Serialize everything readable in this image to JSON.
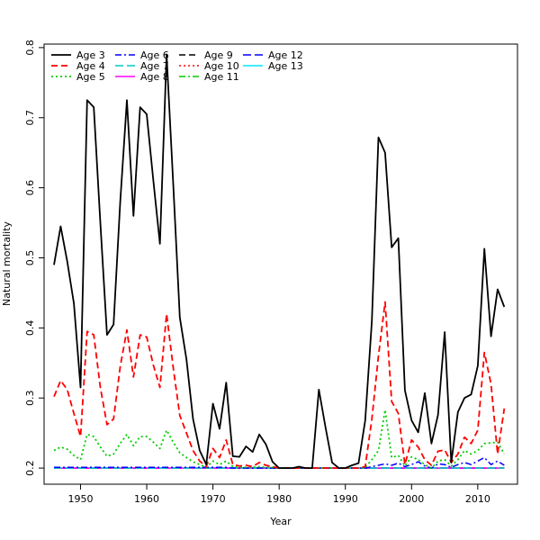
{
  "chart_data": {
    "type": "line",
    "title": "",
    "xlabel": "Year",
    "ylabel": "Natural mortality",
    "xlim": [
      1944.5,
      2016
    ],
    "ylim": [
      0.177,
      0.805
    ],
    "xticks": [
      1950,
      1960,
      1970,
      1980,
      1990,
      2000,
      2010
    ],
    "yticks": [
      0.2,
      0.3,
      0.4,
      0.5,
      0.6,
      0.7,
      0.8
    ],
    "grid": false,
    "legend_position": "top-left",
    "x": [
      1946,
      1947,
      1948,
      1949,
      1950,
      1951,
      1952,
      1953,
      1954,
      1955,
      1956,
      1957,
      1958,
      1959,
      1960,
      1961,
      1962,
      1963,
      1964,
      1965,
      1966,
      1967,
      1968,
      1969,
      1970,
      1971,
      1972,
      1973,
      1974,
      1975,
      1976,
      1977,
      1978,
      1979,
      1980,
      1981,
      1982,
      1983,
      1984,
      1985,
      1986,
      1987,
      1988,
      1989,
      1990,
      1991,
      1992,
      1993,
      1994,
      1995,
      1996,
      1997,
      1998,
      1999,
      2000,
      2001,
      2002,
      2003,
      2004,
      2005,
      2006,
      2007,
      2008,
      2009,
      2010,
      2011,
      2012,
      2013,
      2014
    ],
    "series": [
      {
        "name": "Age 3",
        "color": "#000000",
        "dash": "solid",
        "width": 1.8,
        "values": [
          0.49,
          0.545,
          0.495,
          0.435,
          0.315,
          0.725,
          0.715,
          0.55,
          0.39,
          0.405,
          0.58,
          0.725,
          0.56,
          0.715,
          0.705,
          0.61,
          0.52,
          0.79,
          0.605,
          0.415,
          0.355,
          0.27,
          0.225,
          0.205,
          0.292,
          0.256,
          0.322,
          0.217,
          0.216,
          0.231,
          0.223,
          0.248,
          0.234,
          0.209,
          0.2,
          0.2,
          0.2,
          0.202,
          0.2,
          0.2,
          0.312,
          0.258,
          0.208,
          0.2,
          0.2,
          0.204,
          0.207,
          0.268,
          0.41,
          0.672,
          0.65,
          0.515,
          0.528,
          0.311,
          0.268,
          0.251,
          0.307,
          0.235,
          0.276,
          0.394,
          0.208,
          0.28,
          0.3,
          0.305,
          0.346,
          0.513,
          0.388,
          0.455,
          0.43
        ]
      },
      {
        "name": "Age 4",
        "color": "#ff0000",
        "dash": "7,4",
        "width": 1.8,
        "values": [
          0.302,
          0.325,
          0.312,
          0.278,
          0.245,
          0.395,
          0.39,
          0.315,
          0.262,
          0.27,
          0.345,
          0.397,
          0.33,
          0.39,
          0.387,
          0.347,
          0.315,
          0.42,
          0.343,
          0.275,
          0.25,
          0.225,
          0.21,
          0.202,
          0.228,
          0.215,
          0.24,
          0.205,
          0.203,
          0.204,
          0.202,
          0.208,
          0.204,
          0.202,
          0.2,
          0.2,
          0.2,
          0.2,
          0.2,
          0.2,
          0.2,
          0.2,
          0.2,
          0.2,
          0.2,
          0.2,
          0.2,
          0.202,
          0.27,
          0.36,
          0.437,
          0.295,
          0.278,
          0.205,
          0.24,
          0.23,
          0.212,
          0.204,
          0.224,
          0.226,
          0.208,
          0.22,
          0.244,
          0.235,
          0.254,
          0.365,
          0.32,
          0.22,
          0.285
        ]
      },
      {
        "name": "Age 5",
        "color": "#00cc00",
        "dash": "2,3",
        "width": 1.8,
        "values": [
          0.225,
          0.23,
          0.227,
          0.218,
          0.212,
          0.248,
          0.245,
          0.23,
          0.217,
          0.22,
          0.235,
          0.248,
          0.232,
          0.245,
          0.245,
          0.237,
          0.228,
          0.254,
          0.237,
          0.222,
          0.215,
          0.209,
          0.205,
          0.201,
          0.21,
          0.205,
          0.21,
          0.202,
          0.201,
          0.201,
          0.201,
          0.202,
          0.201,
          0.201,
          0.2,
          0.2,
          0.2,
          0.2,
          0.2,
          0.2,
          0.2,
          0.2,
          0.2,
          0.2,
          0.2,
          0.2,
          0.2,
          0.201,
          0.212,
          0.225,
          0.283,
          0.215,
          0.218,
          0.203,
          0.216,
          0.212,
          0.205,
          0.2,
          0.21,
          0.212,
          0.203,
          0.212,
          0.225,
          0.22,
          0.225,
          0.235,
          0.236,
          0.237,
          0.22
        ]
      },
      {
        "name": "Age 6",
        "color": "#0000ff",
        "dash": "7,3,2,3",
        "width": 1.5,
        "values": [
          0.201,
          0.201,
          0.201,
          0.201,
          0.201,
          0.201,
          0.201,
          0.201,
          0.201,
          0.201,
          0.201,
          0.201,
          0.201,
          0.201,
          0.201,
          0.201,
          0.201,
          0.201,
          0.201,
          0.201,
          0.201,
          0.201,
          0.201,
          0.201,
          0.201,
          0.201,
          0.201,
          0.2,
          0.2,
          0.2,
          0.2,
          0.2,
          0.2,
          0.2,
          0.2,
          0.2,
          0.2,
          0.2,
          0.2,
          0.2,
          0.2,
          0.2,
          0.2,
          0.2,
          0.2,
          0.2,
          0.2,
          0.2,
          0.202,
          0.204,
          0.206,
          0.204,
          0.207,
          0.202,
          0.205,
          0.209,
          0.203,
          0.2,
          0.206,
          0.205,
          0.201,
          0.205,
          0.208,
          0.205,
          0.21,
          0.215,
          0.205,
          0.21,
          0.204
        ]
      },
      {
        "name": "Age 7",
        "color": "#00cccc",
        "dash": "9,4",
        "width": 1.5,
        "values": [
          0.2,
          0.2,
          0.2,
          0.2,
          0.2,
          0.2,
          0.2,
          0.2,
          0.2,
          0.2,
          0.2,
          0.2,
          0.2,
          0.2,
          0.2,
          0.2,
          0.2,
          0.2,
          0.2,
          0.2,
          0.2,
          0.2,
          0.2,
          0.2,
          0.2,
          0.2,
          0.2,
          0.2,
          0.2,
          0.2,
          0.2,
          0.2,
          0.2,
          0.2,
          0.2,
          0.2,
          0.2,
          0.2,
          0.2,
          0.2,
          0.2,
          0.2,
          0.2,
          0.2,
          0.2,
          0.2,
          0.2,
          0.2,
          0.2,
          0.2,
          0.2,
          0.2,
          0.2,
          0.2,
          0.2,
          0.2,
          0.2,
          0.2,
          0.2,
          0.2,
          0.2,
          0.2,
          0.2,
          0.2,
          0.2,
          0.2,
          0.2,
          0.2,
          0.2
        ]
      },
      {
        "name": "Age 8",
        "color": "#ff00ff",
        "dash": "solid",
        "width": 1.5,
        "values": [
          0.2,
          0.2,
          0.2,
          0.2,
          0.2,
          0.2,
          0.2,
          0.2,
          0.2,
          0.2,
          0.2,
          0.2,
          0.2,
          0.2,
          0.2,
          0.2,
          0.2,
          0.2,
          0.2,
          0.2,
          0.2,
          0.2,
          0.2,
          0.2,
          0.2,
          0.2,
          0.2,
          0.2,
          0.2,
          0.2,
          0.2,
          0.2,
          0.2,
          0.2,
          0.2,
          0.2,
          0.2,
          0.2,
          0.2,
          0.2,
          0.2,
          0.2,
          0.2,
          0.2,
          0.2,
          0.2,
          0.2,
          0.2,
          0.2,
          0.2,
          0.2,
          0.2,
          0.2,
          0.2,
          0.2,
          0.2,
          0.2,
          0.2,
          0.2,
          0.2,
          0.2,
          0.2,
          0.2,
          0.2,
          0.2,
          0.2,
          0.2,
          0.2,
          0.2
        ]
      },
      {
        "name": "Age 9",
        "color": "#000000",
        "dash": "7,4",
        "width": 1.5,
        "values": [
          0.2,
          0.2,
          0.2,
          0.2,
          0.2,
          0.2,
          0.2,
          0.2,
          0.2,
          0.2,
          0.2,
          0.2,
          0.2,
          0.2,
          0.2,
          0.2,
          0.2,
          0.2,
          0.2,
          0.2,
          0.2,
          0.2,
          0.2,
          0.2,
          0.2,
          0.2,
          0.2,
          0.2,
          0.2,
          0.2,
          0.2,
          0.2,
          0.2,
          0.2,
          0.2,
          0.2,
          0.2,
          0.2,
          0.2,
          0.2,
          0.2,
          0.2,
          0.2,
          0.2,
          0.2,
          0.2,
          0.2,
          0.2,
          0.2,
          0.2,
          0.2,
          0.2,
          0.2,
          0.2,
          0.2,
          0.2,
          0.2,
          0.2,
          0.2,
          0.2,
          0.2,
          0.2,
          0.2,
          0.2,
          0.2,
          0.2,
          0.2,
          0.2,
          0.2
        ]
      },
      {
        "name": "Age 10",
        "color": "#ff0000",
        "dash": "2,3",
        "width": 1.5,
        "values": [
          0.2,
          0.2,
          0.2,
          0.2,
          0.2,
          0.2,
          0.2,
          0.2,
          0.2,
          0.2,
          0.2,
          0.2,
          0.2,
          0.2,
          0.2,
          0.2,
          0.2,
          0.2,
          0.2,
          0.2,
          0.2,
          0.2,
          0.2,
          0.2,
          0.2,
          0.2,
          0.2,
          0.2,
          0.2,
          0.2,
          0.2,
          0.2,
          0.2,
          0.2,
          0.2,
          0.2,
          0.2,
          0.2,
          0.2,
          0.2,
          0.2,
          0.2,
          0.2,
          0.2,
          0.2,
          0.2,
          0.2,
          0.2,
          0.2,
          0.2,
          0.2,
          0.2,
          0.2,
          0.2,
          0.2,
          0.2,
          0.2,
          0.2,
          0.2,
          0.2,
          0.2,
          0.2,
          0.2,
          0.2,
          0.2,
          0.2,
          0.2,
          0.2,
          0.2
        ]
      },
      {
        "name": "Age 11",
        "color": "#00cc00",
        "dash": "7,3,2,3",
        "width": 1.5,
        "values": [
          0.2,
          0.2,
          0.2,
          0.2,
          0.2,
          0.2,
          0.2,
          0.2,
          0.2,
          0.2,
          0.2,
          0.2,
          0.2,
          0.2,
          0.2,
          0.2,
          0.2,
          0.2,
          0.2,
          0.2,
          0.2,
          0.2,
          0.2,
          0.2,
          0.2,
          0.2,
          0.2,
          0.2,
          0.2,
          0.2,
          0.2,
          0.2,
          0.2,
          0.2,
          0.2,
          0.2,
          0.2,
          0.2,
          0.2,
          0.2,
          0.2,
          0.2,
          0.2,
          0.2,
          0.2,
          0.2,
          0.2,
          0.2,
          0.2,
          0.2,
          0.2,
          0.2,
          0.2,
          0.2,
          0.2,
          0.2,
          0.2,
          0.2,
          0.2,
          0.2,
          0.2,
          0.2,
          0.2,
          0.2,
          0.2,
          0.2,
          0.2,
          0.2,
          0.2
        ]
      },
      {
        "name": "Age 12",
        "color": "#0000ff",
        "dash": "9,4",
        "width": 1.5,
        "values": [
          0.2,
          0.2,
          0.2,
          0.2,
          0.2,
          0.2,
          0.2,
          0.2,
          0.2,
          0.2,
          0.2,
          0.2,
          0.2,
          0.2,
          0.2,
          0.2,
          0.2,
          0.2,
          0.2,
          0.2,
          0.2,
          0.2,
          0.2,
          0.2,
          0.2,
          0.2,
          0.2,
          0.2,
          0.2,
          0.2,
          0.2,
          0.2,
          0.2,
          0.2,
          0.2,
          0.2,
          0.2,
          0.2,
          0.2,
          0.2,
          0.2,
          0.2,
          0.2,
          0.2,
          0.2,
          0.2,
          0.2,
          0.2,
          0.2,
          0.2,
          0.2,
          0.2,
          0.2,
          0.2,
          0.2,
          0.2,
          0.2,
          0.2,
          0.2,
          0.2,
          0.2,
          0.2,
          0.2,
          0.2,
          0.2,
          0.2,
          0.2,
          0.2,
          0.2
        ]
      },
      {
        "name": "Age 13",
        "color": "#00e5ff",
        "dash": "solid",
        "width": 1.5,
        "values": [
          0.2,
          0.2,
          0.2,
          0.2,
          0.2,
          0.2,
          0.2,
          0.2,
          0.2,
          0.2,
          0.2,
          0.2,
          0.2,
          0.2,
          0.2,
          0.2,
          0.2,
          0.2,
          0.2,
          0.2,
          0.2,
          0.2,
          0.2,
          0.2,
          0.2,
          0.2,
          0.2,
          0.2,
          0.2,
          0.2,
          0.2,
          0.2,
          0.2,
          0.2,
          0.2,
          0.2,
          0.2,
          0.2,
          0.2,
          0.2,
          0.2,
          0.2,
          0.2,
          0.2,
          0.2,
          0.2,
          0.2,
          0.2,
          0.2,
          0.2,
          0.2,
          0.2,
          0.2,
          0.2,
          0.2,
          0.2,
          0.2,
          0.2,
          0.2,
          0.2,
          0.2,
          0.2,
          0.2,
          0.2,
          0.2,
          0.2,
          0.2,
          0.2,
          0.2
        ]
      }
    ]
  }
}
